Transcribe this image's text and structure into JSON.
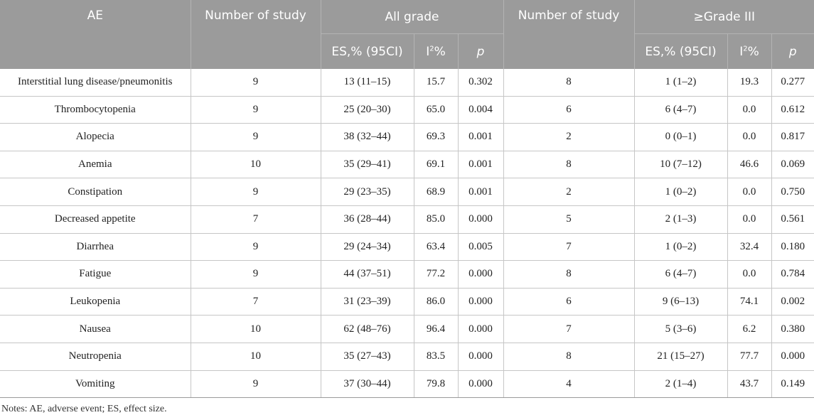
{
  "header": {
    "ae": "AE",
    "num_study_1": "Number of study",
    "all_grade": "All grade",
    "num_study_2": "Number of study",
    "grade3": "≥Grade III",
    "es_ci": "ES,% (95CI)",
    "i2_base": "I",
    "i2_sup": "2",
    "i2_pct": "%",
    "p": "p"
  },
  "rows": [
    {
      "ae": "Interstitial lung disease/pneumonitis",
      "n1": "9",
      "es1": "13 (11–15)",
      "i1": "15.7",
      "p1": "0.302",
      "n2": "8",
      "es2": "1 (1–2)",
      "i2": "19.3",
      "p2": "0.277"
    },
    {
      "ae": "Thrombocytopenia",
      "n1": "9",
      "es1": "25 (20–30)",
      "i1": "65.0",
      "p1": "0.004",
      "n2": "6",
      "es2": "6 (4–7)",
      "i2": "0.0",
      "p2": "0.612"
    },
    {
      "ae": "Alopecia",
      "n1": "9",
      "es1": "38 (32–44)",
      "i1": "69.3",
      "p1": "0.001",
      "n2": "2",
      "es2": "0 (0–1)",
      "i2": "0.0",
      "p2": "0.817"
    },
    {
      "ae": "Anemia",
      "n1": "10",
      "es1": "35 (29–41)",
      "i1": "69.1",
      "p1": "0.001",
      "n2": "8",
      "es2": "10 (7–12)",
      "i2": "46.6",
      "p2": "0.069"
    },
    {
      "ae": "Constipation",
      "n1": "9",
      "es1": "29 (23–35)",
      "i1": "68.9",
      "p1": "0.001",
      "n2": "2",
      "es2": "1 (0–2)",
      "i2": "0.0",
      "p2": "0.750"
    },
    {
      "ae": "Decreased appetite",
      "n1": "7",
      "es1": "36 (28–44)",
      "i1": "85.0",
      "p1": "0.000",
      "n2": "5",
      "es2": "2 (1–3)",
      "i2": "0.0",
      "p2": "0.561"
    },
    {
      "ae": "Diarrhea",
      "n1": "9",
      "es1": "29 (24–34)",
      "i1": "63.4",
      "p1": "0.005",
      "n2": "7",
      "es2": "1 (0–2)",
      "i2": "32.4",
      "p2": "0.180"
    },
    {
      "ae": "Fatigue",
      "n1": "9",
      "es1": "44 (37–51)",
      "i1": "77.2",
      "p1": "0.000",
      "n2": "8",
      "es2": "6 (4–7)",
      "i2": "0.0",
      "p2": "0.784"
    },
    {
      "ae": "Leukopenia",
      "n1": "7",
      "es1": "31 (23–39)",
      "i1": "86.0",
      "p1": "0.000",
      "n2": "6",
      "es2": "9 (6–13)",
      "i2": "74.1",
      "p2": "0.002"
    },
    {
      "ae": "Nausea",
      "n1": "10",
      "es1": "62 (48–76)",
      "i1": "96.4",
      "p1": "0.000",
      "n2": "7",
      "es2": "5 (3–6)",
      "i2": "6.2",
      "p2": "0.380"
    },
    {
      "ae": "Neutropenia",
      "n1": "10",
      "es1": "35 (27–43)",
      "i1": "83.5",
      "p1": "0.000",
      "n2": "8",
      "es2": "21 (15–27)",
      "i2": "77.7",
      "p2": "0.000"
    },
    {
      "ae": "Vomiting",
      "n1": "9",
      "es1": "37 (30–44)",
      "i1": "79.8",
      "p1": "0.000",
      "n2": "4",
      "es2": "2 (1–4)",
      "i2": "43.7",
      "p2": "0.149"
    }
  ],
  "notes": "Notes: AE, adverse event; ES, effect size."
}
